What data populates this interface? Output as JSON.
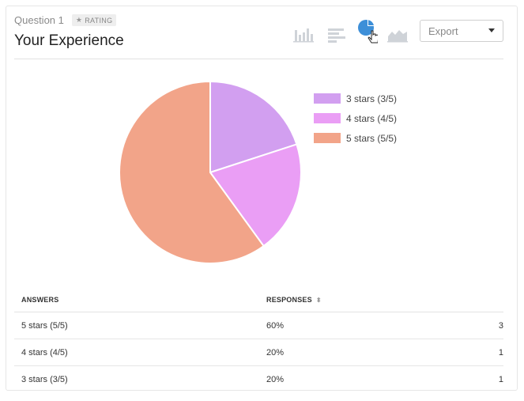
{
  "question": {
    "number_label": "Question 1",
    "badge_label": "RATING",
    "title": "Your Experience"
  },
  "toolbar": {
    "chart_types": [
      {
        "name": "vertical-bar-chart-icon",
        "active": false
      },
      {
        "name": "horizontal-bar-chart-icon",
        "active": false
      },
      {
        "name": "pie-chart-icon",
        "active": true
      },
      {
        "name": "area-chart-icon",
        "active": false
      }
    ],
    "export_label": "Export"
  },
  "colors": {
    "accent": "#3d8fd8",
    "inactive_icon": "#cfd3d8",
    "slice_3": "#d29ff0",
    "slice_4": "#ea9ef5",
    "slice_5": "#f2a489"
  },
  "chart_data": {
    "type": "pie",
    "labels": [
      "3 stars (3/5)",
      "4 stars (4/5)",
      "5 stars (5/5)"
    ],
    "values": [
      20,
      20,
      60
    ],
    "colors": [
      "#d29ff0",
      "#ea9ef5",
      "#f2a489"
    ],
    "legend": "right"
  },
  "table": {
    "headers": {
      "answers": "ANSWERS",
      "responses": "RESPONSES"
    },
    "rows": [
      {
        "answer": "5 stars (5/5)",
        "percent": "60%",
        "count": "3"
      },
      {
        "answer": "4 stars (4/5)",
        "percent": "20%",
        "count": "1"
      },
      {
        "answer": "3 stars (3/5)",
        "percent": "20%",
        "count": "1"
      }
    ]
  }
}
